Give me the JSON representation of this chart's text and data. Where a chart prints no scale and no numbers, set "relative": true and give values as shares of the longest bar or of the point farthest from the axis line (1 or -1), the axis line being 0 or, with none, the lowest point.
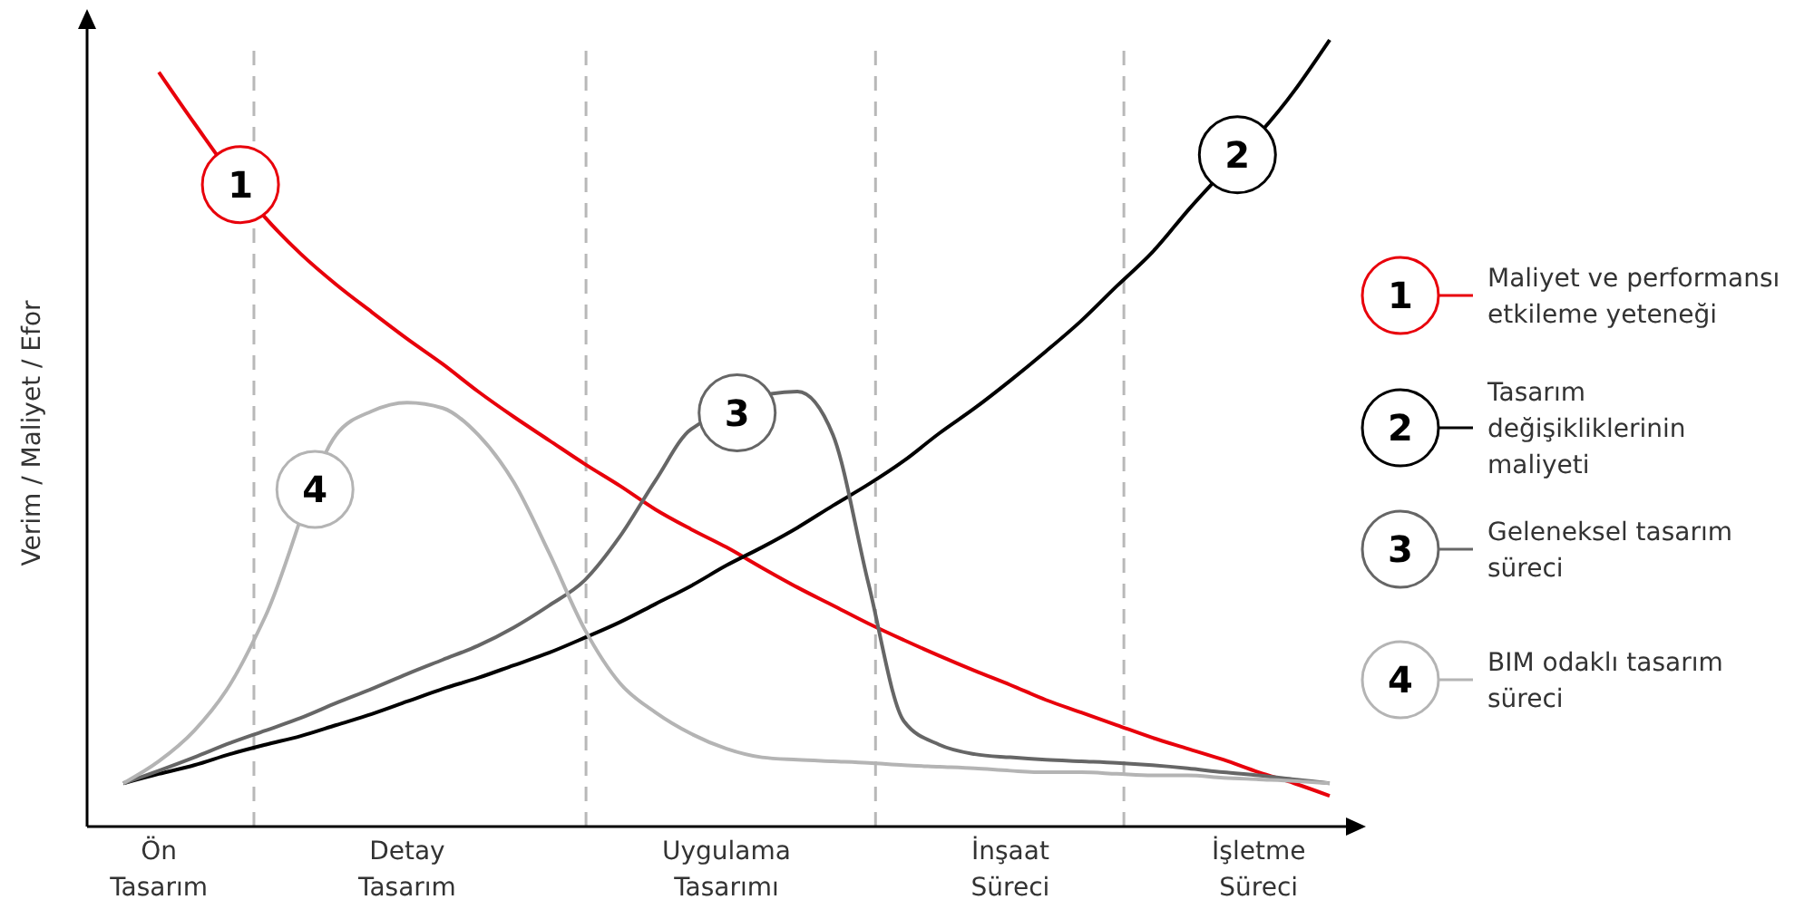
{
  "chart_data": {
    "type": "line",
    "relative": true,
    "ylabel": "Verim / Maliyet / Efor",
    "categories": [
      null,
      "Ön Tasarım",
      null,
      null,
      null,
      null,
      null,
      null,
      "Detay Tasarım",
      null,
      null,
      null,
      null,
      null,
      null,
      null,
      null,
      "Uygulama Tasarımı",
      null,
      null,
      null,
      null,
      null,
      null,
      null,
      "İnşaat Süreci",
      null,
      null,
      null,
      null,
      null,
      null,
      "İşletme Süreci",
      null,
      null
    ],
    "legend": "right",
    "grid": "x",
    "series": [
      {
        "name": "Maliyet ve performansı etkileme yeteneği",
        "color": "#e8000b",
        "values": [
          null,
          0.959,
          0.894,
          null,
          0.774,
          0.728,
          0.689,
          0.654,
          0.62,
          0.588,
          0.553,
          0.521,
          0.491,
          0.461,
          0.433,
          0.403,
          0.378,
          0.355,
          0.329,
          0.304,
          0.281,
          0.258,
          0.237,
          0.217,
          0.198,
          0.18,
          0.161,
          0.145,
          0.129,
          0.113,
          0.099,
          0.085,
          0.069,
          0.055,
          0.039
        ]
      },
      {
        "name": "Tasarım değişikliklerinin maliyeti",
        "color": "#000000",
        "values": [
          0.055,
          0.067,
          0.078,
          0.092,
          0.104,
          0.115,
          0.129,
          0.143,
          0.159,
          0.175,
          0.189,
          0.205,
          0.221,
          0.24,
          0.26,
          0.283,
          0.306,
          0.332,
          0.355,
          0.38,
          0.408,
          0.435,
          0.465,
          0.5,
          0.532,
          0.567,
          0.604,
          0.643,
          0.687,
          0.73,
          0.783,
          null,
          null,
          0.935,
          1
        ]
      },
      {
        "name": "Geleneksel tasarım süreci",
        "color": "#666666",
        "values": [
          0.055,
          0.071,
          0.088,
          0.106,
          0.122,
          0.138,
          0.157,
          0.175,
          0.194,
          0.212,
          0.23,
          0.253,
          0.281,
          0.313,
          0.369,
          0.44,
          0.505,
          null,
          null,
          0.553,
          0.498,
          0.309,
          0.134,
          0.104,
          0.092,
          0.088,
          0.085,
          0.083,
          0.081,
          0.078,
          0.074,
          0.069,
          0.065,
          0.06,
          0.055
        ]
      },
      {
        "name": "BIM odaklı tasarım süreci",
        "color": "#b4b4b4",
        "values": [
          0.055,
          0.083,
          0.122,
          0.18,
          0.267,
          null,
          0.498,
          0.528,
          0.539,
          0.532,
          0.498,
          0.438,
          0.348,
          0.251,
          0.182,
          0.145,
          0.118,
          0.099,
          0.088,
          0.085,
          0.083,
          0.081,
          0.078,
          0.076,
          0.074,
          0.071,
          0.069,
          0.069,
          0.067,
          0.065,
          0.065,
          0.062,
          0.06,
          0.058,
          0.055
        ]
      }
    ],
    "annotations": [
      "1",
      "2",
      "3",
      "4"
    ]
  }
}
